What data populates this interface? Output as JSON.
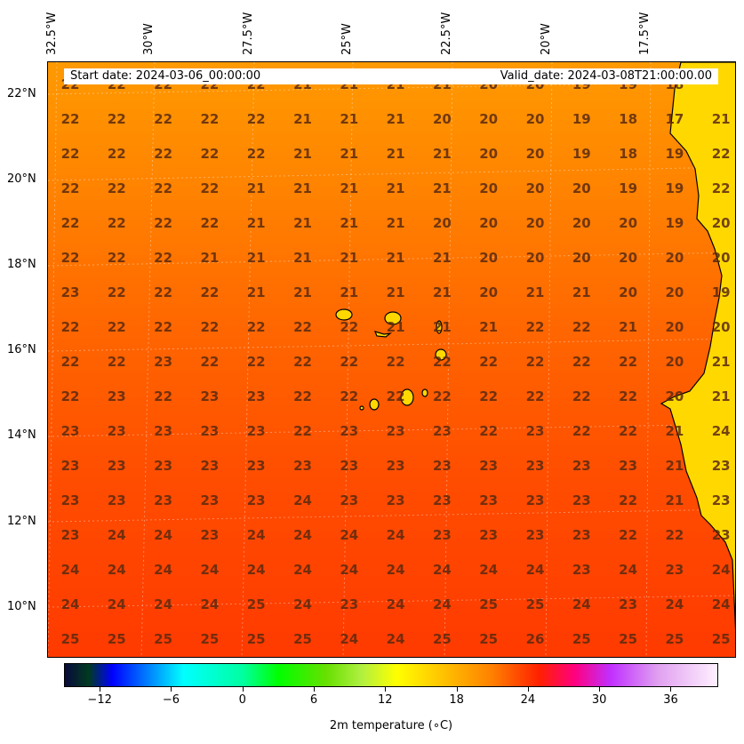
{
  "header": {
    "start_date": "Start date: 2024-03-06_00:00:00",
    "valid_date": "Valid_date: 2024-03-08T21:00:00.00"
  },
  "longitude_labels": [
    "32.5°W",
    "30°W",
    "27.5°W",
    "25°W",
    "22.5°W",
    "20°W",
    "17.5°W"
  ],
  "latitude_labels": [
    "22°N",
    "20°N",
    "18°N",
    "16°N",
    "14°N",
    "12°N",
    "10°N"
  ],
  "grid_values": [
    [
      "22",
      "22",
      "22",
      "22",
      "22",
      "21",
      "21",
      "21",
      "21",
      "20",
      "20",
      "19",
      "19",
      "18"
    ],
    [
      "22",
      "22",
      "22",
      "22",
      "22",
      "21",
      "21",
      "21",
      "20",
      "20",
      "20",
      "19",
      "18",
      "17",
      "21"
    ],
    [
      "22",
      "22",
      "22",
      "22",
      "22",
      "21",
      "21",
      "21",
      "21",
      "20",
      "20",
      "19",
      "18",
      "19",
      "22"
    ],
    [
      "22",
      "22",
      "22",
      "22",
      "21",
      "21",
      "21",
      "21",
      "21",
      "20",
      "20",
      "20",
      "19",
      "19",
      "22"
    ],
    [
      "22",
      "22",
      "22",
      "22",
      "21",
      "21",
      "21",
      "21",
      "20",
      "20",
      "20",
      "20",
      "20",
      "19",
      "20"
    ],
    [
      "22",
      "22",
      "22",
      "21",
      "21",
      "21",
      "21",
      "21",
      "21",
      "20",
      "20",
      "20",
      "20",
      "20",
      "20"
    ],
    [
      "23",
      "22",
      "22",
      "22",
      "21",
      "21",
      "21",
      "21",
      "21",
      "20",
      "21",
      "21",
      "20",
      "20",
      "19"
    ],
    [
      "22",
      "22",
      "22",
      "22",
      "22",
      "22",
      "22",
      "21",
      "21",
      "21",
      "22",
      "22",
      "21",
      "20",
      "20"
    ],
    [
      "22",
      "22",
      "23",
      "22",
      "22",
      "22",
      "22",
      "22",
      "22",
      "22",
      "22",
      "22",
      "22",
      "20",
      "21"
    ],
    [
      "22",
      "23",
      "22",
      "23",
      "23",
      "22",
      "22",
      "22",
      "22",
      "22",
      "22",
      "22",
      "22",
      "20",
      "21"
    ],
    [
      "23",
      "23",
      "23",
      "23",
      "23",
      "22",
      "23",
      "23",
      "23",
      "22",
      "23",
      "22",
      "22",
      "21",
      "24"
    ],
    [
      "23",
      "23",
      "23",
      "23",
      "23",
      "23",
      "23",
      "23",
      "23",
      "23",
      "23",
      "23",
      "23",
      "21",
      "23"
    ],
    [
      "23",
      "23",
      "23",
      "23",
      "23",
      "24",
      "23",
      "23",
      "23",
      "23",
      "23",
      "23",
      "22",
      "21",
      "23"
    ],
    [
      "23",
      "24",
      "24",
      "23",
      "24",
      "24",
      "24",
      "24",
      "23",
      "23",
      "23",
      "23",
      "22",
      "22",
      "23"
    ],
    [
      "24",
      "24",
      "24",
      "24",
      "24",
      "24",
      "24",
      "24",
      "24",
      "24",
      "24",
      "23",
      "24",
      "23",
      "24"
    ],
    [
      "24",
      "24",
      "24",
      "24",
      "25",
      "24",
      "23",
      "24",
      "24",
      "25",
      "25",
      "24",
      "23",
      "24",
      "24"
    ],
    [
      "25",
      "25",
      "25",
      "25",
      "25",
      "25",
      "24",
      "24",
      "25",
      "25",
      "26",
      "25",
      "25",
      "25",
      "25"
    ]
  ],
  "colorbar": {
    "title": "2m temperature ($^\\circ$C)",
    "title_display": "2m temperature (∘C)",
    "min": -15,
    "max": 40,
    "ticks": [
      "−12",
      "−6",
      "0",
      "6",
      "12",
      "18",
      "24",
      "30",
      "36"
    ],
    "tick_values": [
      -12,
      -6,
      0,
      6,
      12,
      18,
      24,
      30,
      36
    ]
  },
  "map_colors": {
    "land": "#ffd800",
    "coast": "#000000"
  }
}
